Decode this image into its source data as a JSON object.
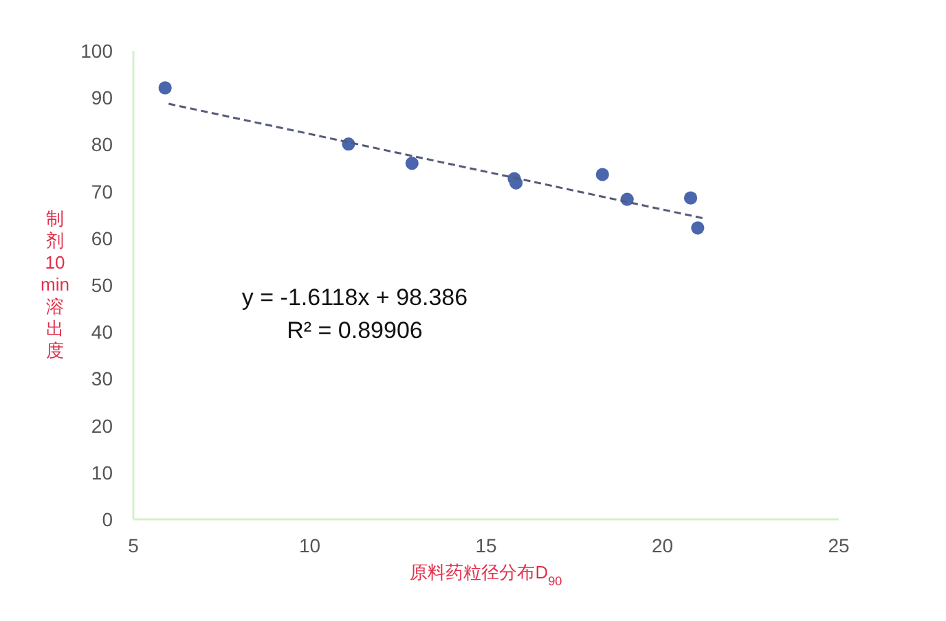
{
  "chart_data": {
    "type": "scatter",
    "xlabel": "原料药粒径分布D$_{90}$",
    "ylabel": "制剂10min溶出度",
    "xlim": [
      5,
      25
    ],
    "xticks": [
      5,
      10,
      15,
      20,
      25
    ],
    "ylim": [
      0,
      100
    ],
    "yticks": [
      0,
      10,
      20,
      30,
      40,
      50,
      60,
      70,
      80,
      90,
      100
    ],
    "grid": false,
    "series": [
      {
        "color": "#4a66ac",
        "marker": "circle",
        "x": [
          5.9,
          11.1,
          12.9,
          15.8,
          15.85,
          18.3,
          19.0,
          20.8,
          21.0
        ],
        "values": [
          92.1,
          80.1,
          76.0,
          72.7,
          71.8,
          73.6,
          68.3,
          68.6,
          62.2
        ]
      },
      {
        "type": "line",
        "color": "#555a78",
        "line_style": "dashed",
        "x": [
          6.0,
          21.2
        ],
        "values": [
          88.7,
          64.2
        ]
      }
    ],
    "annotations": [
      "y = -1.6118x + 98.386",
      "R² = 0.89906"
    ]
  }
}
